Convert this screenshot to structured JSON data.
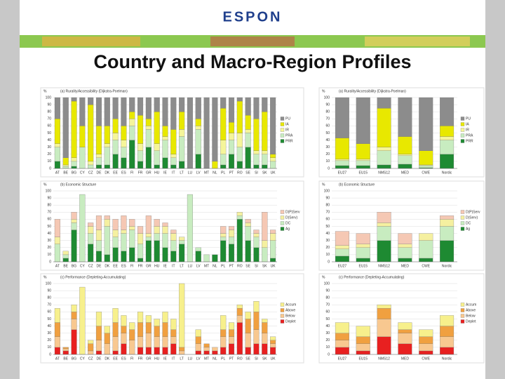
{
  "logo": "ESPON",
  "slide_title": "Country and Macro-Region Profiles",
  "chart_data": [
    {
      "type": "bar",
      "stacked": true,
      "title": "(a) Rurality/Accessibility (Dijkstra-Poelman)",
      "y_label": "%",
      "ylim": [
        0,
        100
      ],
      "yticks": [
        0,
        10,
        20,
        30,
        40,
        50,
        60,
        70,
        80,
        90,
        100
      ],
      "grid": true,
      "categories": [
        "AT",
        "BE",
        "BG",
        "CY",
        "CZ",
        "DE",
        "DK",
        "EE",
        "ES",
        "FI",
        "FR",
        "GR",
        "HU",
        "IE",
        "IT",
        "LT",
        "LU",
        "LV",
        "MT",
        "NL",
        "PL",
        "PT",
        "RO",
        "SE",
        "SI",
        "SK",
        "UK"
      ],
      "series": [
        {
          "name": "PU",
          "color": "#8c8c8c",
          "values": [
            30,
            85,
            5,
            40,
            10,
            40,
            40,
            30,
            40,
            20,
            25,
            30,
            20,
            40,
            45,
            20,
            100,
            30,
            100,
            90,
            15,
            35,
            5,
            25,
            30,
            20,
            80
          ]
        },
        {
          "name": "IA",
          "color": "#e8e800",
          "values": [
            35,
            10,
            80,
            30,
            80,
            40,
            25,
            20,
            20,
            10,
            40,
            10,
            45,
            15,
            35,
            25,
            0,
            10,
            0,
            10,
            45,
            15,
            45,
            20,
            45,
            55,
            5
          ]
        },
        {
          "name": "IR",
          "color": "#f5f59a",
          "values": [
            5,
            2,
            5,
            0,
            5,
            5,
            5,
            10,
            10,
            10,
            10,
            5,
            10,
            5,
            5,
            10,
            0,
            5,
            0,
            0,
            20,
            10,
            20,
            5,
            5,
            5,
            5
          ]
        },
        {
          "name": "PRA",
          "color": "#c8ecc0",
          "values": [
            20,
            3,
            7,
            30,
            5,
            10,
            25,
            20,
            15,
            20,
            15,
            25,
            20,
            25,
            10,
            35,
            0,
            35,
            0,
            0,
            15,
            20,
            20,
            20,
            15,
            15,
            10
          ]
        },
        {
          "name": "PRR",
          "color": "#1e8a32",
          "values": [
            10,
            0,
            3,
            0,
            0,
            5,
            5,
            20,
            15,
            40,
            10,
            30,
            5,
            15,
            5,
            10,
            0,
            20,
            0,
            0,
            5,
            20,
            10,
            30,
            5,
            5,
            0
          ]
        }
      ]
    },
    {
      "type": "bar",
      "stacked": true,
      "title": "(a) Rurality/Accessibility (Dijkstra-Poelman)",
      "y_label": "%",
      "ylim": [
        0,
        100
      ],
      "yticks": [
        0,
        10,
        20,
        30,
        40,
        50,
        60,
        70,
        80,
        90,
        100
      ],
      "grid": true,
      "categories": [
        "EU27",
        "EU15",
        "NMS12",
        "MED",
        "CWE",
        "Nordic"
      ],
      "series": [
        {
          "name": "PU",
          "color": "#8c8c8c",
          "values": [
            57,
            65,
            15,
            55,
            75,
            40
          ]
        },
        {
          "name": "IA",
          "color": "#e8e800",
          "values": [
            30,
            22,
            55,
            25,
            20,
            15
          ]
        },
        {
          "name": "IR",
          "color": "#f5f59a",
          "values": [
            2,
            2,
            5,
            2,
            1,
            5
          ]
        },
        {
          "name": "PRA",
          "color": "#c8ecc0",
          "values": [
            7,
            7,
            20,
            12,
            3,
            20
          ]
        },
        {
          "name": "PRR",
          "color": "#1e8a32",
          "values": [
            4,
            4,
            5,
            6,
            1,
            20
          ]
        }
      ]
    },
    {
      "type": "bar",
      "stacked": true,
      "title": "(b) Economic Structure",
      "y_label": "%",
      "ylim": [
        0,
        100
      ],
      "yticks": [
        0,
        10,
        20,
        30,
        40,
        50,
        60,
        70,
        80,
        90,
        100
      ],
      "grid": true,
      "categories": [
        "AT",
        "BE",
        "BG",
        "CY",
        "CZ",
        "DE",
        "DK",
        "EE",
        "ES",
        "FI",
        "FR",
        "GR",
        "HU",
        "IE",
        "IT",
        "LT",
        "LU",
        "LV",
        "MT",
        "NL",
        "PL",
        "PT",
        "RO",
        "SE",
        "SI",
        "SK",
        "UK"
      ],
      "series": [
        {
          "name": "D(P)Serv",
          "color": "#f5c8b4",
          "values": [
            25,
            0,
            10,
            0,
            5,
            20,
            5,
            15,
            20,
            10,
            10,
            25,
            10,
            5,
            5,
            0,
            0,
            0,
            0,
            0,
            10,
            5,
            0,
            5,
            5,
            40,
            5
          ]
        },
        {
          "name": "D(Serv)",
          "color": "#f5f0a0",
          "values": [
            10,
            5,
            5,
            0,
            10,
            15,
            10,
            10,
            5,
            5,
            15,
            5,
            10,
            10,
            10,
            5,
            0,
            0,
            0,
            0,
            5,
            10,
            5,
            5,
            5,
            10,
            10
          ]
        },
        {
          "name": "DC",
          "color": "#c8ecc0",
          "values": [
            25,
            5,
            10,
            95,
            15,
            15,
            40,
            15,
            25,
            25,
            20,
            5,
            10,
            20,
            15,
            5,
            95,
            5,
            10,
            0,
            5,
            10,
            5,
            20,
            15,
            20,
            25
          ]
        },
        {
          "name": "Ag",
          "color": "#1e8a32",
          "values": [
            0,
            5,
            45,
            0,
            25,
            15,
            10,
            20,
            15,
            20,
            5,
            30,
            30,
            20,
            15,
            25,
            0,
            15,
            0,
            10,
            30,
            25,
            60,
            30,
            20,
            0,
            5
          ]
        }
      ]
    },
    {
      "type": "bar",
      "stacked": true,
      "title": "(b) Economic Structure",
      "y_label": "%",
      "ylim": [
        0,
        100
      ],
      "yticks": [
        0,
        10,
        20,
        30,
        40,
        50,
        60,
        70,
        80,
        90,
        100
      ],
      "grid": true,
      "categories": [
        "EU27",
        "EU15",
        "NMS12",
        "MED",
        "CWE",
        "Nordic"
      ],
      "series": [
        {
          "name": "D(P)Serv",
          "color": "#f5c8b4",
          "values": [
            20,
            15,
            15,
            15,
            0,
            5
          ]
        },
        {
          "name": "D(Serv)",
          "color": "#f5f0a0",
          "values": [
            5,
            5,
            5,
            5,
            10,
            10
          ]
        },
        {
          "name": "DC",
          "color": "#c8ecc0",
          "values": [
            10,
            15,
            20,
            15,
            25,
            20
          ]
        },
        {
          "name": "Ag",
          "color": "#1e8a32",
          "values": [
            8,
            5,
            30,
            5,
            5,
            30
          ]
        }
      ]
    },
    {
      "type": "bar",
      "stacked": true,
      "title": "(c) Performance (Depleting-Accumulating)",
      "y_label": "%",
      "ylim": [
        0,
        100
      ],
      "yticks": [
        0,
        10,
        20,
        30,
        40,
        50,
        60,
        70,
        80,
        90,
        100
      ],
      "grid": true,
      "categories": [
        "AT",
        "BE",
        "BG",
        "CY",
        "CZ",
        "DE",
        "DK",
        "EE",
        "ES",
        "FI",
        "FR",
        "GR",
        "HU",
        "IE",
        "IT",
        "LT",
        "LU",
        "LV",
        "MT",
        "NL",
        "PL",
        "PT",
        "RO",
        "SE",
        "SI",
        "SK",
        "UK"
      ],
      "series": [
        {
          "name": "Accum",
          "color": "#f7f08c",
          "values": [
            20,
            0,
            10,
            95,
            5,
            20,
            10,
            20,
            15,
            10,
            15,
            10,
            10,
            15,
            15,
            90,
            0,
            10,
            0,
            0,
            20,
            10,
            5,
            10,
            15,
            5,
            5
          ]
        },
        {
          "name": "Above",
          "color": "#f0a040",
          "values": [
            20,
            2,
            10,
            0,
            10,
            20,
            15,
            20,
            10,
            15,
            20,
            15,
            15,
            20,
            10,
            5,
            0,
            10,
            5,
            0,
            10,
            10,
            10,
            20,
            25,
            15,
            5
          ]
        },
        {
          "name": "Below",
          "color": "#f8c890",
          "values": [
            15,
            3,
            15,
            0,
            5,
            15,
            15,
            20,
            15,
            20,
            15,
            20,
            15,
            15,
            10,
            5,
            0,
            10,
            5,
            5,
            15,
            10,
            10,
            20,
            20,
            15,
            5
          ]
        },
        {
          "name": "Deplet",
          "color": "#e82020",
          "values": [
            10,
            5,
            35,
            0,
            0,
            5,
            0,
            5,
            15,
            0,
            10,
            10,
            10,
            10,
            15,
            0,
            0,
            5,
            5,
            5,
            10,
            15,
            45,
            10,
            15,
            15,
            10
          ]
        }
      ]
    },
    {
      "type": "bar",
      "stacked": true,
      "title": "(c) Performance (Depleting-Accumulating)",
      "y_label": "%",
      "ylim": [
        0,
        100
      ],
      "yticks": [
        0,
        10,
        20,
        30,
        40,
        50,
        60,
        70,
        80,
        90,
        100
      ],
      "grid": true,
      "categories": [
        "EU27",
        "EU15",
        "NMS12",
        "MED",
        "CWE",
        "Nordic"
      ],
      "series": [
        {
          "name": "Accum",
          "color": "#f7f08c",
          "values": [
            15,
            15,
            5,
            10,
            10,
            15
          ]
        },
        {
          "name": "Above",
          "color": "#f0a040",
          "values": [
            10,
            10,
            15,
            5,
            10,
            15
          ]
        },
        {
          "name": "Below",
          "color": "#f8c890",
          "values": [
            10,
            10,
            25,
            15,
            10,
            15
          ]
        },
        {
          "name": "Deplet",
          "color": "#e82020",
          "values": [
            10,
            5,
            25,
            15,
            5,
            10
          ]
        }
      ]
    }
  ]
}
